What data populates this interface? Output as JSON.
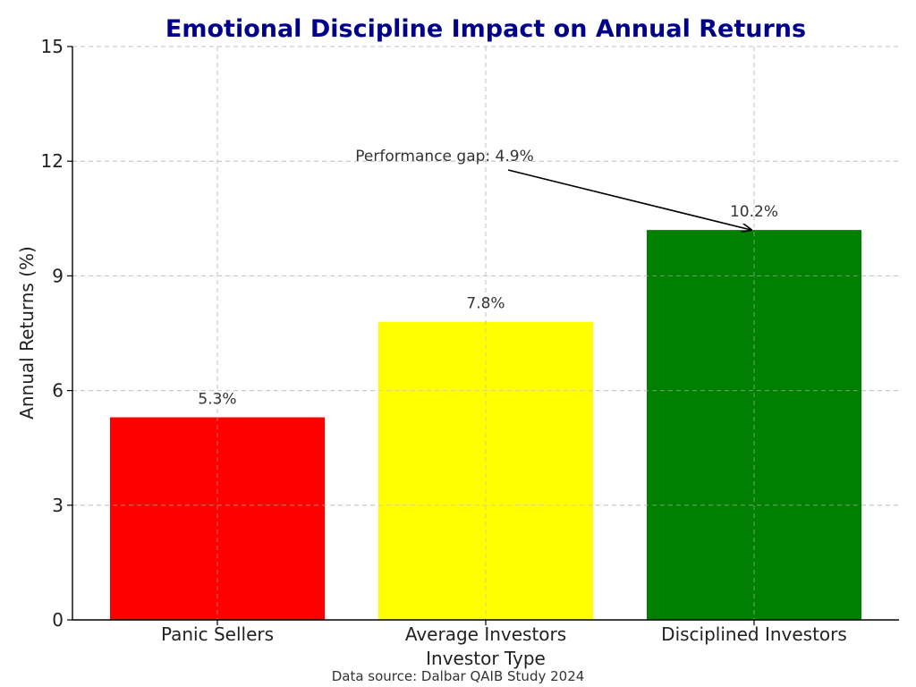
{
  "chart_data": {
    "type": "bar",
    "title": "Emotional Discipline Impact on Annual Returns",
    "title_color": "#00008B",
    "xlabel": "Investor Type",
    "ylabel": "Annual Returns (%)",
    "categories": [
      "Panic Sellers",
      "Average Investors",
      "Disciplined Investors"
    ],
    "values": [
      5.3,
      7.8,
      10.2
    ],
    "value_labels": [
      "5.3%",
      "7.8%",
      "10.2%"
    ],
    "colors": [
      "#FF0000",
      "#FFFF00",
      "#008000"
    ],
    "ylim": [
      0,
      15
    ],
    "yticks": [
      0,
      3,
      6,
      9,
      12,
      15
    ],
    "grid": true,
    "legend": "none",
    "annotation": {
      "text": "Performance gap: 4.9%",
      "points_to_category": "Disciplined Investors",
      "points_to_value": 10.2
    },
    "source": "Data source: Dalbar QAIB Study 2024"
  }
}
